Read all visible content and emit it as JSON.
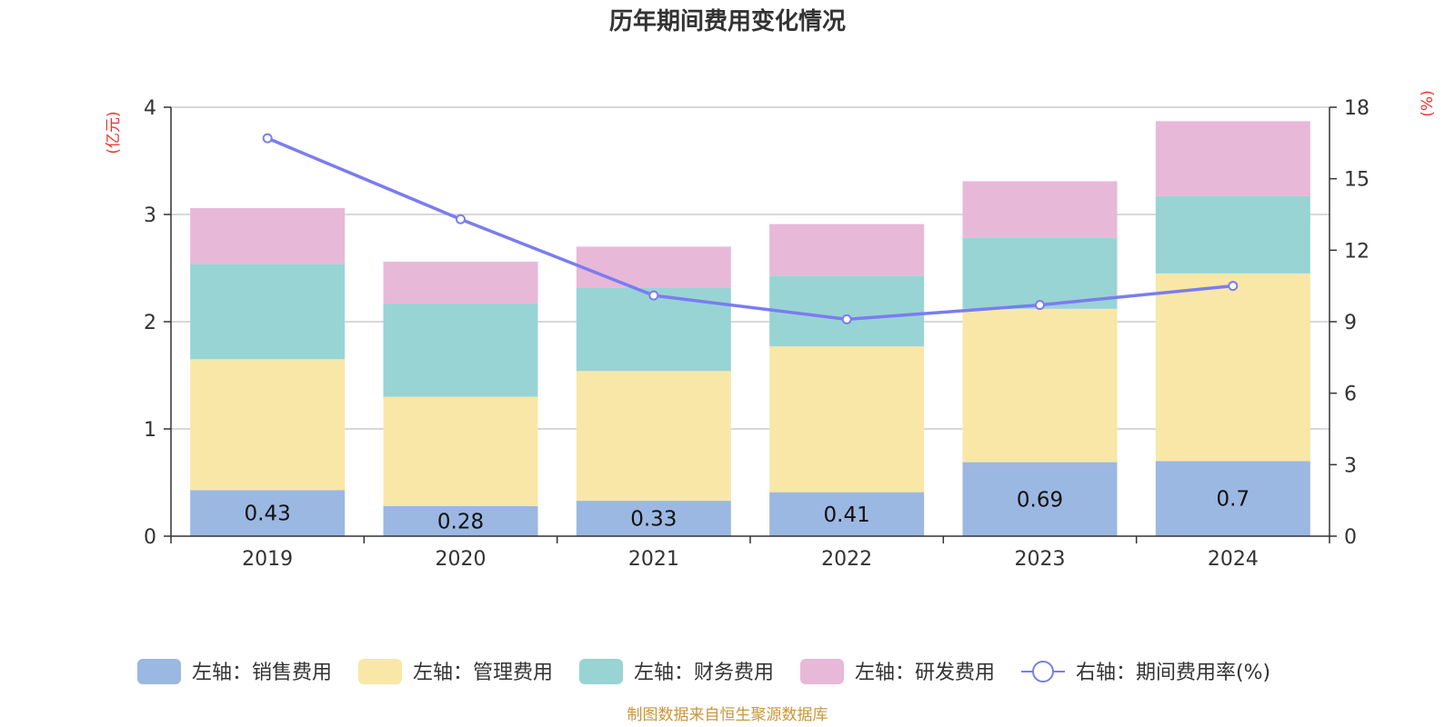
{
  "chart_data": {
    "type": "bar",
    "title": "历年期间费用变化情况",
    "categories": [
      "2019",
      "2020",
      "2021",
      "2022",
      "2023",
      "2024"
    ],
    "left_axis": {
      "unit_label": "(亿元)",
      "ylim": [
        0,
        4
      ],
      "ticks": [
        0,
        1,
        2,
        3,
        4
      ]
    },
    "right_axis": {
      "unit_label": "(%)",
      "ylim": [
        0,
        18
      ],
      "ticks": [
        0,
        3,
        6,
        9,
        12,
        15,
        18
      ]
    },
    "series": [
      {
        "name": "左轴：销售费用",
        "axis": "left",
        "type": "bar",
        "stack": "total",
        "color": "#9bb8e2",
        "values": [
          0.43,
          0.28,
          0.33,
          0.41,
          0.69,
          0.7
        ],
        "data_labels": [
          "0.43",
          "0.28",
          "0.33",
          "0.41",
          "0.69",
          "0.7"
        ]
      },
      {
        "name": "左轴：管理费用",
        "axis": "left",
        "type": "bar",
        "stack": "total",
        "color": "#f8e7a7",
        "values": [
          1.22,
          1.02,
          1.21,
          1.36,
          1.43,
          1.75
        ]
      },
      {
        "name": "左轴：财务费用",
        "axis": "left",
        "type": "bar",
        "stack": "total",
        "color": "#98d4d4",
        "values": [
          0.89,
          0.87,
          0.78,
          0.66,
          0.66,
          0.72
        ]
      },
      {
        "name": "左轴：研发费用",
        "axis": "left",
        "type": "bar",
        "stack": "total",
        "color": "#e8b8d8",
        "values": [
          0.52,
          0.39,
          0.38,
          0.48,
          0.53,
          0.7
        ]
      },
      {
        "name": "右轴：期间费用率(%)",
        "axis": "right",
        "type": "line",
        "color": "#7b7cf0",
        "values": [
          16.7,
          13.3,
          10.1,
          9.1,
          9.7,
          10.5
        ]
      }
    ],
    "grid": true,
    "legend_position": "bottom"
  },
  "source": "制图数据来自恒生聚源数据库"
}
